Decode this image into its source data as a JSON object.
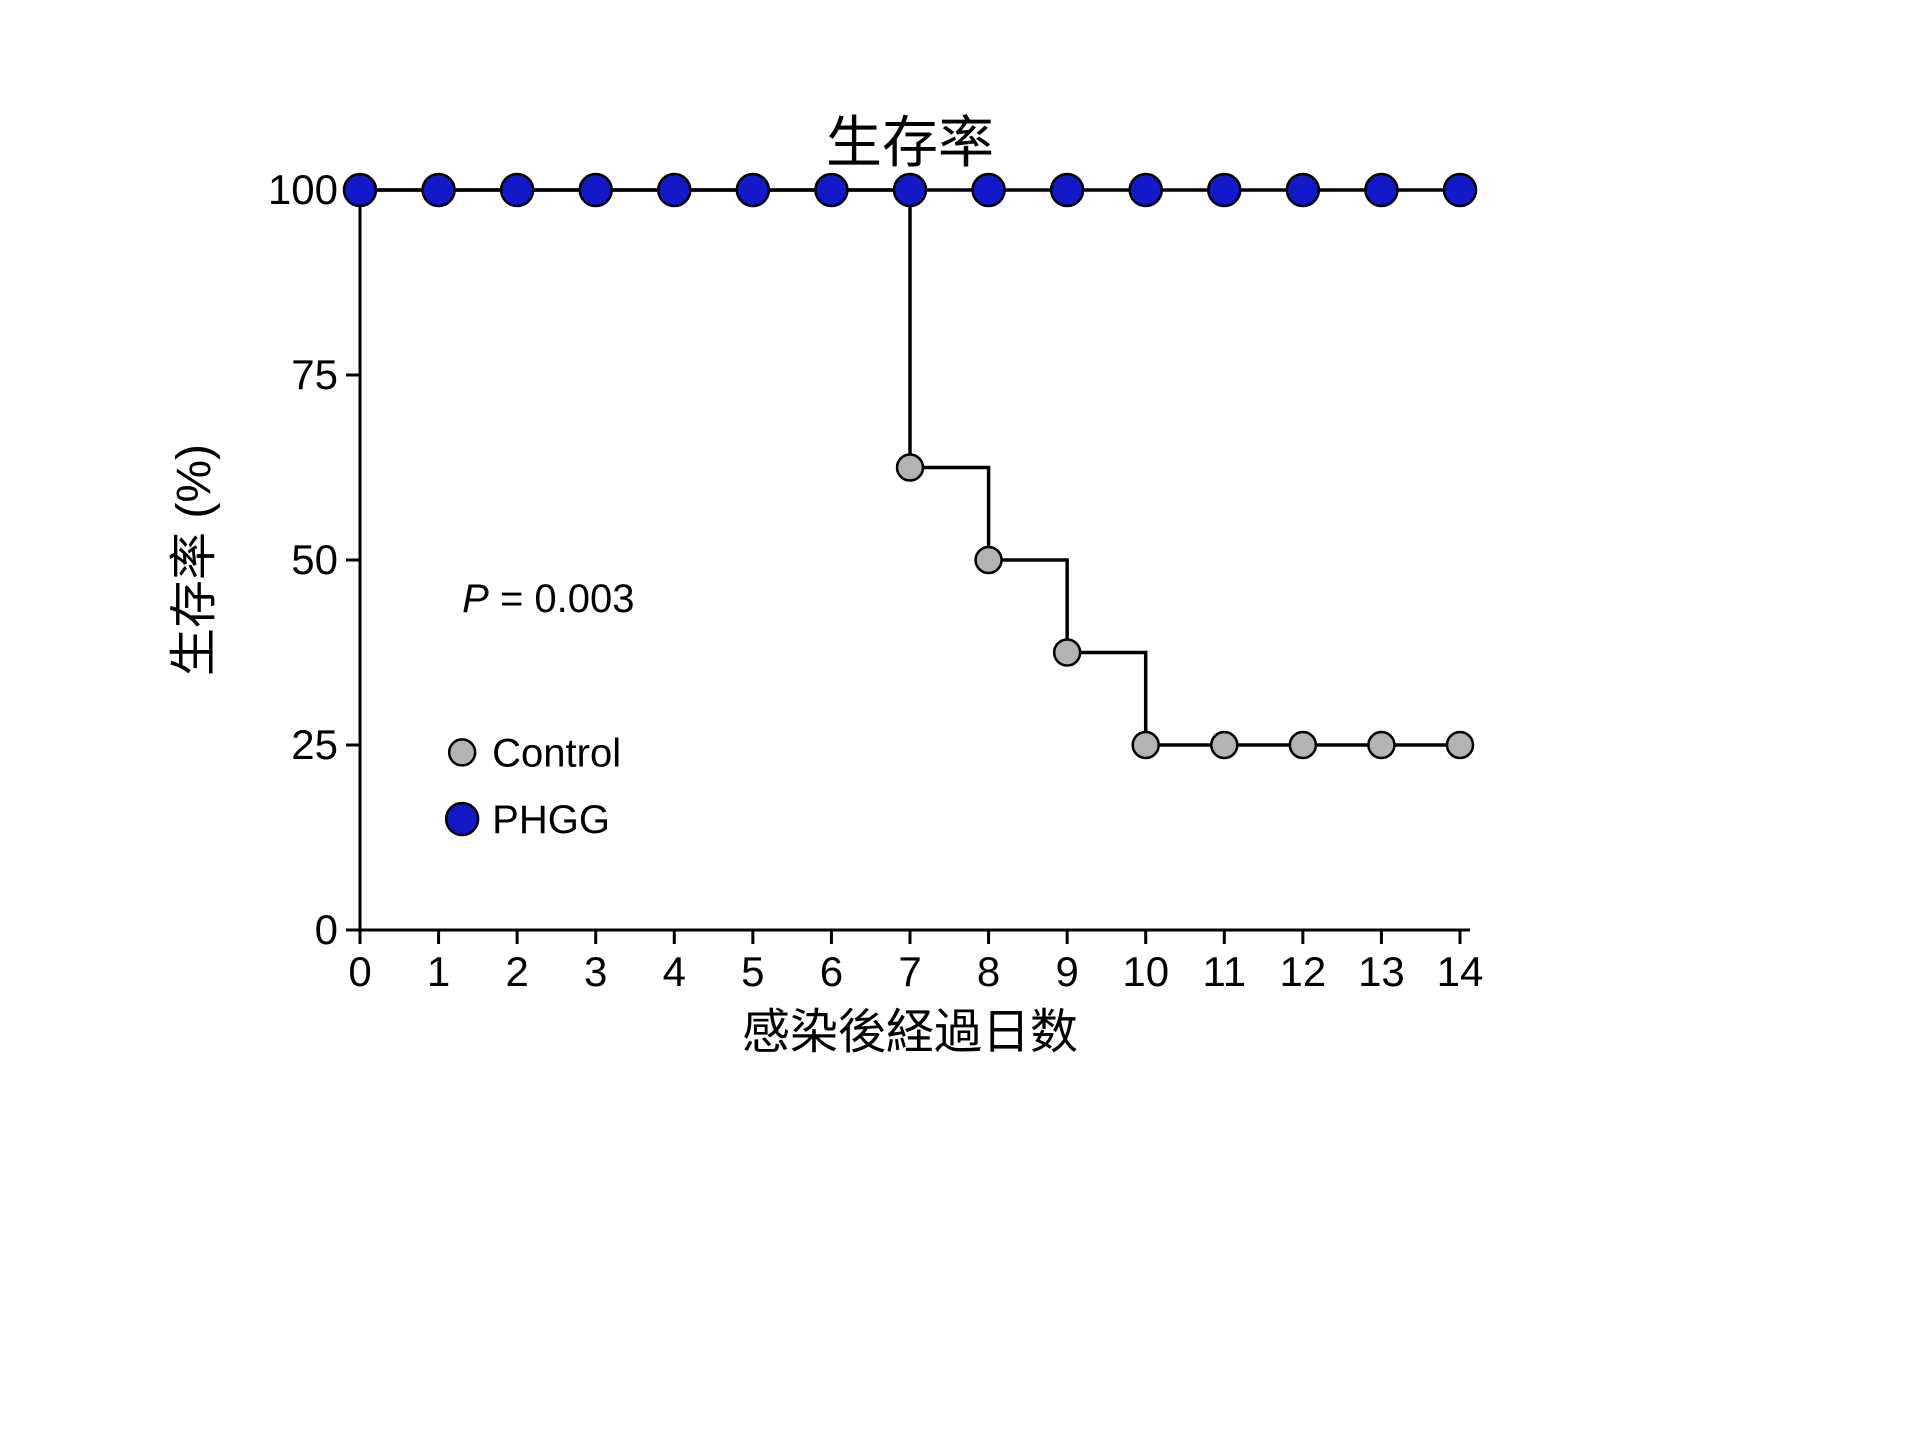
{
  "chart": {
    "type": "survival-step",
    "title": "生存率",
    "title_fontsize": 56,
    "xlabel": "感染後経過日数",
    "ylabel": "生存率 (%)",
    "label_fontsize": 48,
    "tick_fontsize": 42,
    "background_color": "#ffffff",
    "axis_color": "#000000",
    "axis_width": 3,
    "xlim": [
      0,
      14
    ],
    "ylim": [
      0,
      100
    ],
    "xticks": [
      0,
      1,
      2,
      3,
      4,
      5,
      6,
      7,
      8,
      9,
      10,
      11,
      12,
      13,
      14
    ],
    "yticks": [
      0,
      25,
      50,
      75,
      100
    ],
    "marker_radius_phgg": 16,
    "marker_radius_control": 13,
    "line_width": 3.5,
    "marker_stroke": "#000000",
    "series": {
      "phgg": {
        "label": "PHGG",
        "color": "#1219c8",
        "x": [
          0,
          1,
          2,
          3,
          4,
          5,
          6,
          7,
          8,
          9,
          10,
          11,
          12,
          13,
          14
        ],
        "y": [
          100,
          100,
          100,
          100,
          100,
          100,
          100,
          100,
          100,
          100,
          100,
          100,
          100,
          100,
          100
        ]
      },
      "control": {
        "label": "Control",
        "color": "#b3b3b3",
        "x": [
          0,
          1,
          2,
          3,
          4,
          5,
          6,
          7,
          8,
          9,
          10,
          11,
          12,
          13,
          14
        ],
        "y": [
          100,
          100,
          100,
          100,
          100,
          100,
          100,
          62.5,
          50,
          37.5,
          25,
          25,
          25,
          25,
          25
        ]
      }
    },
    "p_value_text": {
      "prefix_italic": "P",
      "rest": " = 0.003"
    },
    "legend": {
      "items": [
        {
          "key": "control",
          "label": "Control"
        },
        {
          "key": "phgg",
          "label": "PHGG"
        }
      ],
      "label_fontsize": 40
    }
  }
}
